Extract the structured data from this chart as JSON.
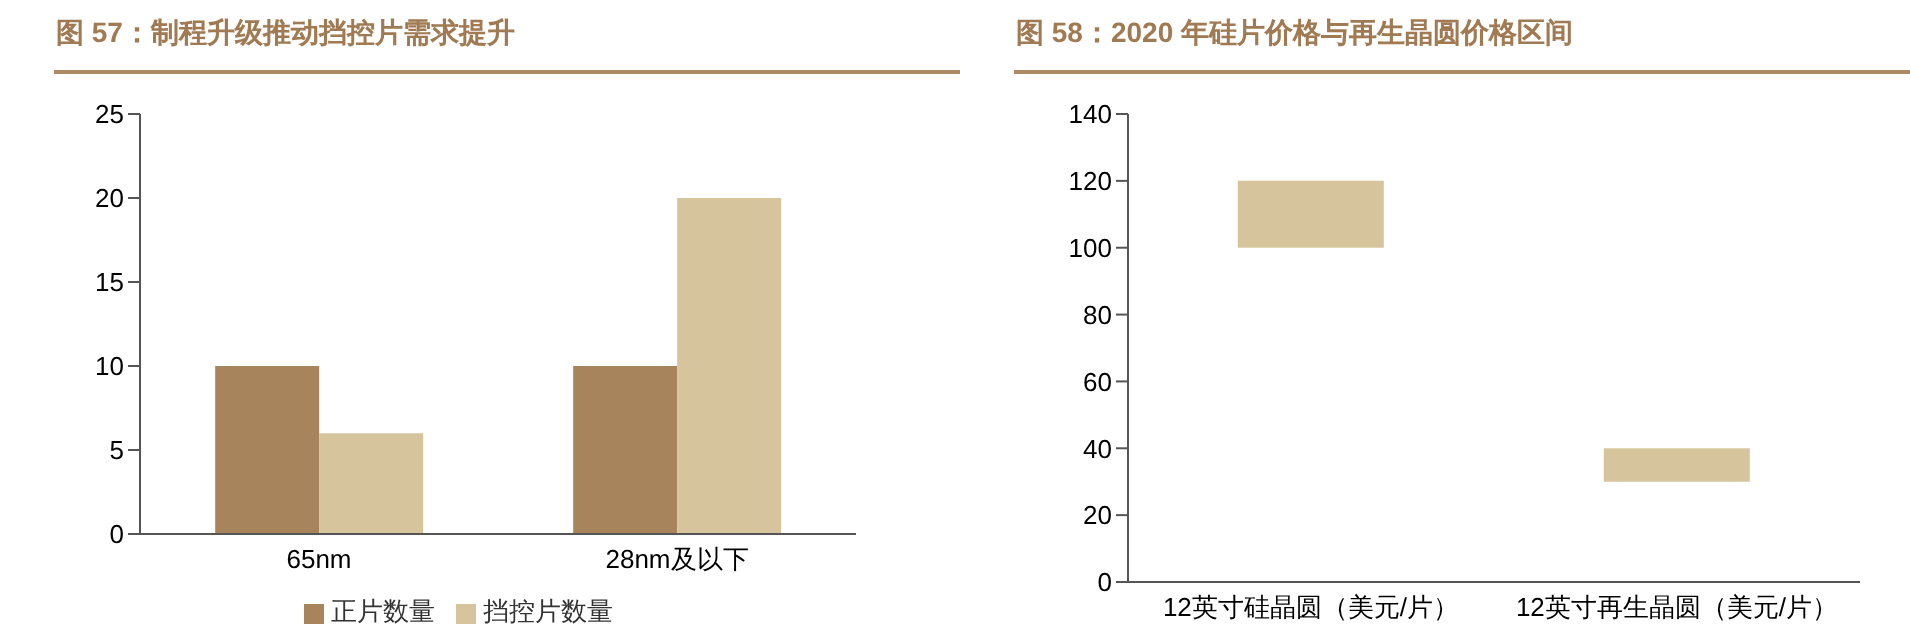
{
  "chart_data": [
    {
      "type": "bar",
      "title": "图 57：制程升级推动挡控片需求提升",
      "categories": [
        "65nm",
        "28nm及以下"
      ],
      "series": [
        {
          "name": "正片数量",
          "color": "#a8845c",
          "values": [
            10,
            10
          ]
        },
        {
          "name": "挡控片数量",
          "color": "#d5c49c",
          "values": [
            6,
            20
          ]
        }
      ],
      "ylim": [
        0,
        25
      ],
      "yticks": [
        0,
        5,
        10,
        15,
        20,
        25
      ],
      "legend": "bottom"
    },
    {
      "type": "bar",
      "title": "图 58：2020 年硅片价格与再生晶圆价格区间",
      "categories": [
        "12英寸硅晶圆（美元/片）",
        "12英寸再生晶圆（美元/片）"
      ],
      "values": [
        20,
        10
      ],
      "base": [
        100,
        30
      ],
      "color": "#d5c49c",
      "ylim": [
        0,
        140
      ],
      "yticks": [
        0,
        20,
        40,
        60,
        80,
        100,
        120,
        140
      ]
    }
  ]
}
